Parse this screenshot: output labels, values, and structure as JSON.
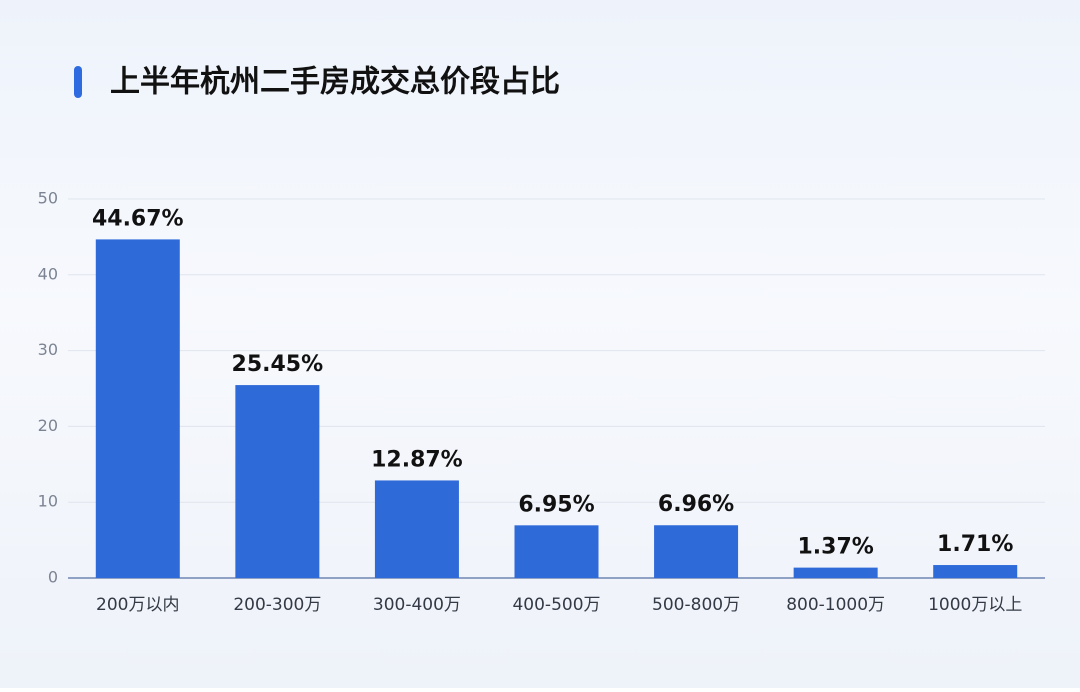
{
  "chart_data": {
    "type": "bar",
    "title": "上半年杭州二手房成交总价段占比",
    "categories": [
      "200万以内",
      "200-300万",
      "300-400万",
      "400-500万",
      "500-800万",
      "800-1000万",
      "1000万以上"
    ],
    "values": [
      44.67,
      25.45,
      12.87,
      6.95,
      6.96,
      1.37,
      1.71
    ],
    "value_labels": [
      "44.67%",
      "25.45%",
      "12.87%",
      "6.95%",
      "6.96%",
      "1.37%",
      "1.71%"
    ],
    "color": "#2f6ad9",
    "ylim": [
      0,
      50
    ],
    "yticks": [
      0,
      10,
      20,
      30,
      40,
      50
    ],
    "grid": true
  }
}
